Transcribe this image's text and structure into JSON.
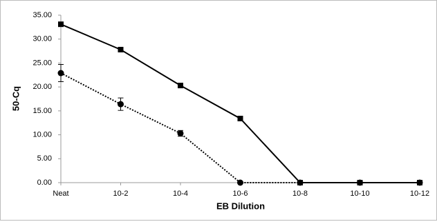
{
  "chart_data": {
    "type": "line",
    "x_label": "EB Dilution",
    "y_label": "50-Cq",
    "categories": [
      "Neat",
      "10-2",
      "10-4",
      "10-6",
      "10-8",
      "10-10",
      "10-12"
    ],
    "series": [
      {
        "color": "#000000",
        "line_style": "solid",
        "marker": "square",
        "values": [
          33.1,
          27.8,
          20.3,
          13.4,
          0,
          0,
          0
        ]
      },
      {
        "color": "#000000",
        "line_style": "dotted",
        "marker": "circle",
        "values": [
          22.9,
          16.4,
          10.3,
          0,
          0,
          0,
          0
        ],
        "errors": [
          1.8,
          1.3,
          0.6,
          null,
          null,
          null,
          null
        ]
      }
    ],
    "ylim": [
      0,
      35
    ],
    "yticks": [
      {
        "value": 0,
        "label": "0.00"
      },
      {
        "value": 5,
        "label": "5.00"
      },
      {
        "value": 10,
        "label": "10.00"
      },
      {
        "value": 15,
        "label": "15.00"
      },
      {
        "value": 20,
        "label": "20.00"
      },
      {
        "value": 25,
        "label": "25.00"
      },
      {
        "value": 30,
        "label": "30.00"
      },
      {
        "value": 35,
        "label": "35.00"
      }
    ],
    "grid": false
  }
}
